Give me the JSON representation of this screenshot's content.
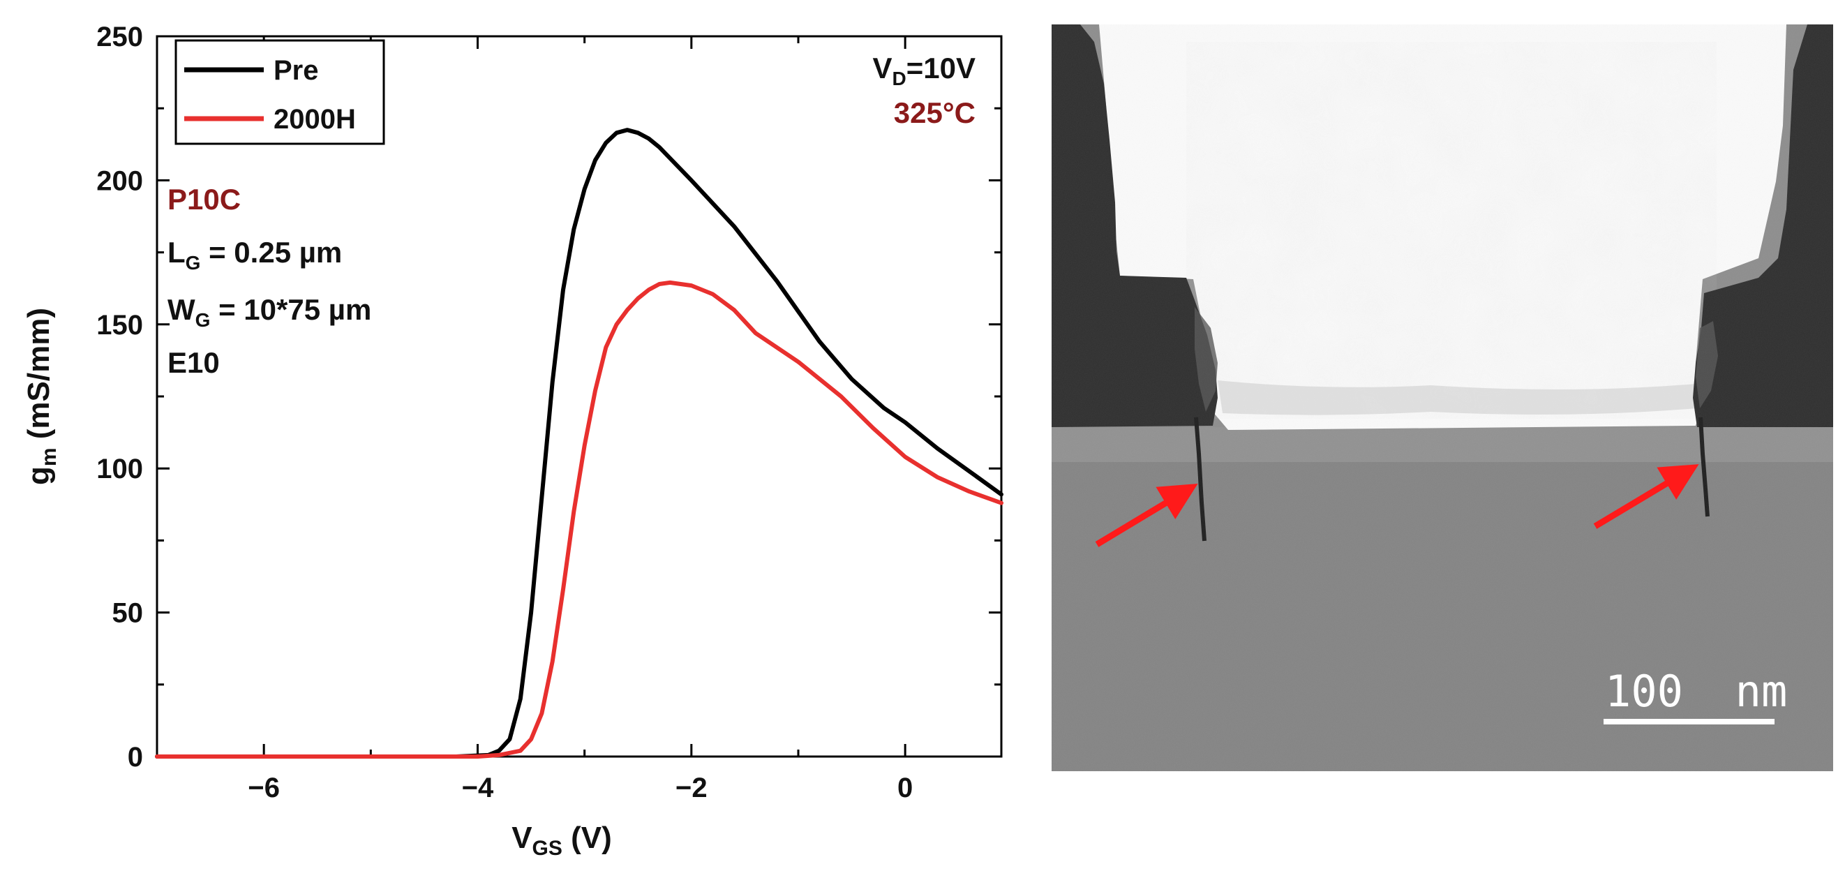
{
  "chart_data": {
    "type": "line",
    "xlabel_main": "V",
    "xlabel_sub": "GS",
    "xlabel_unit": " (V)",
    "ylabel_main": "g",
    "ylabel_sub": "m",
    "ylabel_unit": " (mS/mm)",
    "xlim": [
      -7,
      0.9
    ],
    "ylim": [
      0,
      250
    ],
    "x_ticks": [
      -6,
      -4,
      -2,
      0
    ],
    "x_tick_labels": [
      "−6",
      "−4",
      "−2",
      "0"
    ],
    "y_ticks": [
      0,
      50,
      100,
      150,
      200,
      250
    ],
    "y_tick_labels": [
      "0",
      "50",
      "100",
      "150",
      "200",
      "250"
    ],
    "legend_position": "top-left",
    "grid": false,
    "series": [
      {
        "name": "Pre",
        "color": "#000000",
        "points": [
          [
            -7,
            0
          ],
          [
            -6,
            0
          ],
          [
            -5,
            0
          ],
          [
            -4.2,
            0
          ],
          [
            -3.9,
            0.5
          ],
          [
            -3.8,
            2
          ],
          [
            -3.7,
            6
          ],
          [
            -3.6,
            20
          ],
          [
            -3.5,
            50
          ],
          [
            -3.4,
            90
          ],
          [
            -3.3,
            130
          ],
          [
            -3.2,
            162
          ],
          [
            -3.1,
            183
          ],
          [
            -3.0,
            197
          ],
          [
            -2.9,
            207
          ],
          [
            -2.8,
            213
          ],
          [
            -2.7,
            216.5
          ],
          [
            -2.6,
            217.5
          ],
          [
            -2.5,
            216.5
          ],
          [
            -2.4,
            214.5
          ],
          [
            -2.3,
            211.5
          ],
          [
            -2.0,
            200
          ],
          [
            -1.6,
            184
          ],
          [
            -1.2,
            165
          ],
          [
            -0.8,
            144
          ],
          [
            -0.5,
            131
          ],
          [
            -0.2,
            121
          ],
          [
            0.0,
            116
          ],
          [
            0.3,
            107
          ],
          [
            0.6,
            99
          ],
          [
            0.9,
            91
          ]
        ]
      },
      {
        "name": "2000H",
        "color": "#e8302e",
        "points": [
          [
            -7,
            0
          ],
          [
            -6,
            0
          ],
          [
            -5,
            0
          ],
          [
            -4.0,
            0
          ],
          [
            -3.8,
            0.5
          ],
          [
            -3.6,
            2
          ],
          [
            -3.5,
            6
          ],
          [
            -3.4,
            15
          ],
          [
            -3.3,
            33
          ],
          [
            -3.2,
            58
          ],
          [
            -3.1,
            85
          ],
          [
            -3.0,
            108
          ],
          [
            -2.9,
            127
          ],
          [
            -2.8,
            142
          ],
          [
            -2.7,
            150
          ],
          [
            -2.6,
            155
          ],
          [
            -2.5,
            159
          ],
          [
            -2.4,
            162
          ],
          [
            -2.3,
            164
          ],
          [
            -2.2,
            164.5
          ],
          [
            -2.0,
            163.5
          ],
          [
            -1.8,
            160.5
          ],
          [
            -1.6,
            155
          ],
          [
            -1.4,
            147
          ],
          [
            -1.0,
            137
          ],
          [
            -0.6,
            125
          ],
          [
            -0.3,
            114
          ],
          [
            0.0,
            104
          ],
          [
            0.3,
            97
          ],
          [
            0.6,
            92
          ],
          [
            0.9,
            88
          ]
        ]
      }
    ],
    "annotations": {
      "vd_main": "V",
      "vd_sub": "D",
      "vd_rest": "=10V",
      "temp": "325°C",
      "device": "P10C",
      "lg_main": "L",
      "lg_sub": "G",
      "lg_rest": " = 0.25 µm",
      "wg_main": "W",
      "wg_sub": "G",
      "wg_rest": " = 10*75 µm",
      "label_e10": "E10"
    }
  },
  "micrograph": {
    "scale_bar_label": "100  nm",
    "arrow_color": "#ff1a1a"
  }
}
